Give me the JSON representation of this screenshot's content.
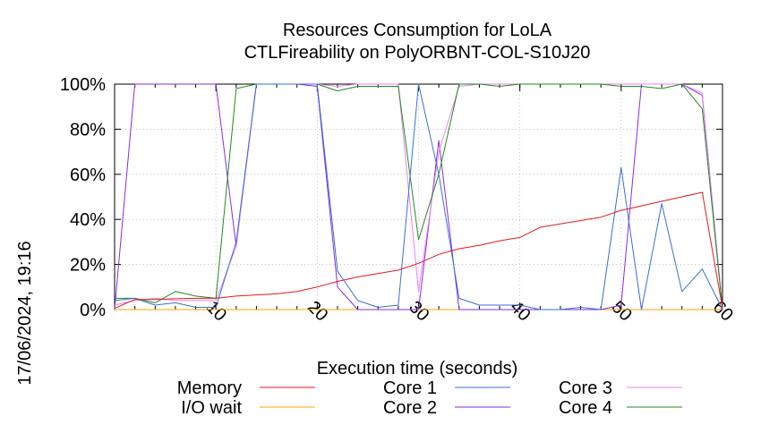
{
  "chart_data": {
    "type": "line",
    "title": "Resources Consumption for LoLA",
    "subtitle": "CTLFireability on PolyORBNT-COL-S10J20",
    "xlabel": "Execution time (seconds)",
    "ylabel": "",
    "timestamp": "17/06/2024, 19:16",
    "xlim": [
      0,
      60
    ],
    "ylim": [
      0,
      100
    ],
    "x_ticks": [
      "10",
      "20",
      "30",
      "40",
      "50",
      "60"
    ],
    "y_ticks": [
      "0%",
      "20%",
      "40%",
      "60%",
      "80%",
      "100%"
    ],
    "grid": true,
    "legend_position": "bottom",
    "series": [
      {
        "name": "Memory",
        "color": "#e41a1c",
        "points": [
          [
            0,
            0.5
          ],
          [
            2,
            4.5
          ],
          [
            4,
            4.5
          ],
          [
            6,
            4.8
          ],
          [
            8,
            5
          ],
          [
            10,
            5
          ],
          [
            12,
            6
          ],
          [
            14,
            6.5
          ],
          [
            16,
            7
          ],
          [
            18,
            8
          ],
          [
            20,
            10
          ],
          [
            22,
            12.5
          ],
          [
            24,
            14.5
          ],
          [
            26,
            16
          ],
          [
            28,
            17.5
          ],
          [
            30,
            20.5
          ],
          [
            32,
            24.5
          ],
          [
            34,
            27
          ],
          [
            36,
            28.5
          ],
          [
            38,
            30.5
          ],
          [
            40,
            32
          ],
          [
            42,
            36.5
          ],
          [
            44,
            38
          ],
          [
            46,
            39.5
          ],
          [
            48,
            41
          ],
          [
            50,
            44
          ],
          [
            52,
            46
          ],
          [
            54,
            48
          ],
          [
            56,
            50
          ],
          [
            58,
            52
          ],
          [
            60,
            0.5
          ]
        ]
      },
      {
        "name": "I/O wait",
        "color": "#ffa500",
        "points": [
          [
            0,
            0
          ],
          [
            10,
            0
          ],
          [
            20,
            0
          ],
          [
            30,
            0
          ],
          [
            40,
            0
          ],
          [
            50,
            0
          ],
          [
            60,
            0
          ]
        ]
      },
      {
        "name": "Core 1",
        "color": "#3a6fd8",
        "points": [
          [
            0,
            4
          ],
          [
            2,
            5
          ],
          [
            4,
            2
          ],
          [
            6,
            3
          ],
          [
            8,
            1
          ],
          [
            10,
            1
          ],
          [
            12,
            30
          ],
          [
            14,
            100
          ],
          [
            16,
            100
          ],
          [
            18,
            100
          ],
          [
            20,
            100
          ],
          [
            22,
            17
          ],
          [
            24,
            4
          ],
          [
            26,
            1
          ],
          [
            28,
            2
          ],
          [
            30,
            100
          ],
          [
            32,
            60
          ],
          [
            34,
            5
          ],
          [
            36,
            2
          ],
          [
            38,
            2
          ],
          [
            40,
            2
          ],
          [
            42,
            0
          ],
          [
            44,
            0
          ],
          [
            46,
            1
          ],
          [
            48,
            0
          ],
          [
            50,
            63
          ],
          [
            52,
            0
          ],
          [
            54,
            47
          ],
          [
            56,
            8
          ],
          [
            58,
            18
          ],
          [
            60,
            0
          ]
        ]
      },
      {
        "name": "Core 2",
        "color": "#8a2be2",
        "points": [
          [
            0,
            0
          ],
          [
            2,
            100
          ],
          [
            4,
            100
          ],
          [
            6,
            100
          ],
          [
            8,
            100
          ],
          [
            10,
            100
          ],
          [
            12,
            28
          ],
          [
            14,
            100
          ],
          [
            16,
            100
          ],
          [
            18,
            100
          ],
          [
            20,
            99
          ],
          [
            22,
            10
          ],
          [
            24,
            0
          ],
          [
            26,
            0
          ],
          [
            28,
            0
          ],
          [
            30,
            0
          ],
          [
            32,
            75
          ],
          [
            34,
            0
          ],
          [
            36,
            0
          ],
          [
            38,
            0
          ],
          [
            40,
            0
          ],
          [
            42,
            0
          ],
          [
            44,
            0
          ],
          [
            46,
            0
          ],
          [
            48,
            0
          ],
          [
            50,
            2
          ],
          [
            52,
            100
          ],
          [
            54,
            100
          ],
          [
            56,
            100
          ],
          [
            58,
            95
          ],
          [
            60,
            0
          ]
        ]
      },
      {
        "name": "Core 3",
        "color": "#ee82ee",
        "points": [
          [
            0,
            2
          ],
          [
            2,
            4
          ],
          [
            4,
            5
          ],
          [
            6,
            4
          ],
          [
            8,
            4
          ],
          [
            10,
            4
          ],
          [
            12,
            28
          ],
          [
            14,
            100
          ],
          [
            16,
            100
          ],
          [
            18,
            100
          ],
          [
            20,
            100
          ],
          [
            22,
            99
          ],
          [
            24,
            100
          ],
          [
            26,
            100
          ],
          [
            28,
            100
          ],
          [
            30,
            8
          ],
          [
            32,
            70
          ],
          [
            34,
            99
          ],
          [
            36,
            100
          ],
          [
            38,
            100
          ],
          [
            40,
            100
          ],
          [
            42,
            100
          ],
          [
            44,
            100
          ],
          [
            46,
            100
          ],
          [
            48,
            100
          ],
          [
            50,
            100
          ],
          [
            52,
            100
          ],
          [
            54,
            100
          ],
          [
            56,
            100
          ],
          [
            58,
            96
          ],
          [
            60,
            0
          ]
        ]
      },
      {
        "name": "Core 4",
        "color": "#228b22",
        "points": [
          [
            0,
            5
          ],
          [
            2,
            5
          ],
          [
            4,
            3
          ],
          [
            6,
            8
          ],
          [
            8,
            6
          ],
          [
            10,
            5
          ],
          [
            12,
            98
          ],
          [
            14,
            100
          ],
          [
            16,
            100
          ],
          [
            18,
            100
          ],
          [
            20,
            100
          ],
          [
            22,
            97
          ],
          [
            24,
            99
          ],
          [
            26,
            99
          ],
          [
            28,
            99
          ],
          [
            30,
            31
          ],
          [
            32,
            60
          ],
          [
            34,
            100
          ],
          [
            36,
            100
          ],
          [
            38,
            99
          ],
          [
            40,
            100
          ],
          [
            42,
            100
          ],
          [
            44,
            100
          ],
          [
            46,
            100
          ],
          [
            48,
            100
          ],
          [
            50,
            99
          ],
          [
            52,
            99
          ],
          [
            54,
            98
          ],
          [
            56,
            100
          ],
          [
            58,
            89
          ],
          [
            60,
            0
          ]
        ]
      }
    ]
  }
}
